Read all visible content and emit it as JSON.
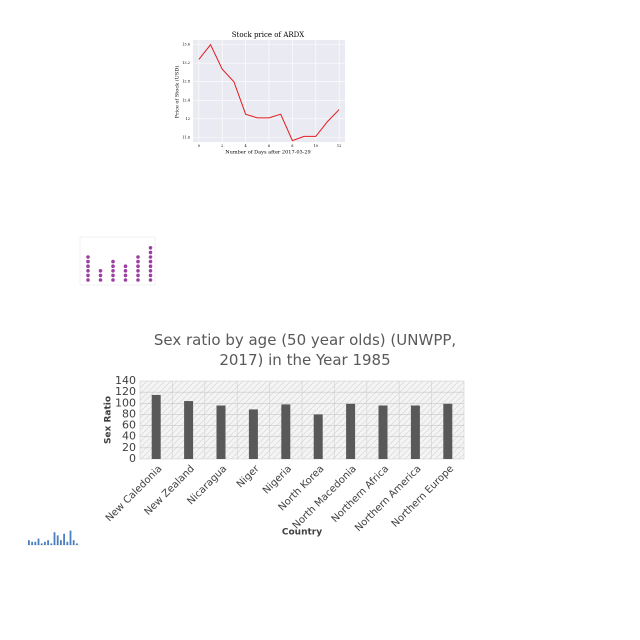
{
  "chart_data": [
    {
      "type": "line",
      "title": "Stock price of ARDX",
      "x_label": "Number of Days after 2017-03-29",
      "y_label": "Price of Stock (USD)",
      "x": [
        0,
        1,
        2,
        3,
        4,
        5,
        6,
        7,
        8,
        9,
        10,
        11,
        12
      ],
      "series": [
        {
          "color": "#e41a1c",
          "values": [
            13.28,
            13.6,
            13.07,
            12.8,
            12.1,
            12.02,
            12.02,
            12.1,
            11.53,
            11.62,
            11.62,
            11.94,
            12.2
          ]
        }
      ],
      "xlim": [
        -0.5,
        12.5
      ],
      "xticks": [
        0,
        2,
        4,
        6,
        8,
        10,
        12
      ],
      "ylim": [
        11.5,
        13.7
      ],
      "yticks": [
        11.6,
        12.0,
        12.4,
        12.8,
        13.2,
        13.6
      ],
      "grid": true
    },
    {
      "type": "dot",
      "color": "#9b3fa0",
      "values": [
        6,
        3,
        5,
        4,
        6,
        8
      ]
    },
    {
      "type": "bar",
      "title": "Sex ratio by age (50 year olds) (UNWPP, 2017) in the Year 1985",
      "x_label": "Country",
      "y_label": "Sex Ratio",
      "categories": [
        "New Caledonia",
        "New Zealand",
        "Nicaragua",
        "Niger",
        "Nigeria",
        "North Korea",
        "North Macedonia",
        "Northern Africa",
        "Northern America",
        "Northern Europe"
      ],
      "values": [
        115,
        104,
        96,
        89,
        98,
        80,
        99,
        96,
        96,
        99
      ],
      "color": "#595959",
      "ylim": [
        0,
        140
      ],
      "yticks": [
        0,
        20,
        40,
        60,
        80,
        100,
        120,
        140
      ],
      "grid": true
    },
    {
      "type": "minibar",
      "color": "#4a7fc1",
      "values": [
        3,
        2,
        2,
        4,
        1,
        2,
        3,
        1,
        8,
        6,
        3,
        7,
        2,
        9,
        3,
        1
      ]
    }
  ]
}
